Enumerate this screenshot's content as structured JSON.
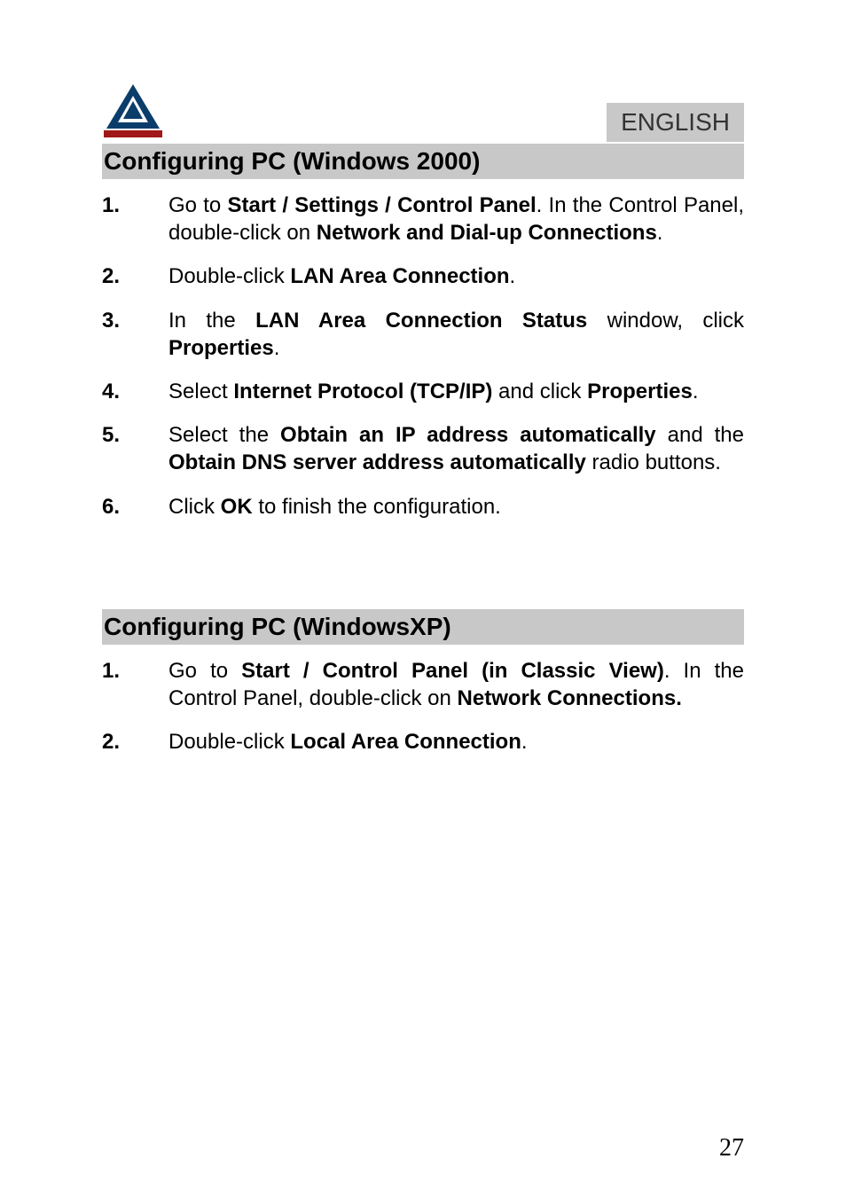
{
  "language_badge": "ENGLISH",
  "page_number": "27",
  "colors": {
    "heading_bg": "#c8c8c8",
    "badge_bg": "#c8c8c8",
    "text": "#000000",
    "page_bg": "#ffffff",
    "logo_triangle": "#0b3d6b",
    "logo_bar": "#a01818"
  },
  "fonts": {
    "body_family": "Arial",
    "body_size": 24,
    "heading_size": 28,
    "page_number_family": "Times New Roman",
    "page_number_size": 28
  },
  "sections": [
    {
      "heading": "Configuring  PC (Windows 2000)",
      "steps": [
        {
          "number": "1.",
          "parts": [
            {
              "text": "Go to ",
              "bold": false
            },
            {
              "text": "Start / Settings / Control Panel",
              "bold": true
            },
            {
              "text": ". In the Control Panel, double-click on ",
              "bold": false
            },
            {
              "text": "Network and Dial-up Connections",
              "bold": true
            },
            {
              "text": ".",
              "bold": false
            }
          ]
        },
        {
          "number": "2.",
          "parts": [
            {
              "text": "Double-click ",
              "bold": false
            },
            {
              "text": "LAN Area Connection",
              "bold": true
            },
            {
              "text": ".",
              "bold": false
            }
          ]
        },
        {
          "number": "3.",
          "parts": [
            {
              "text": "In the ",
              "bold": false
            },
            {
              "text": "LAN Area Connection Status",
              "bold": true
            },
            {
              "text": " window, click ",
              "bold": false
            },
            {
              "text": "Properties",
              "bold": true
            },
            {
              "text": ".",
              "bold": false
            }
          ]
        },
        {
          "number": "4.",
          "parts": [
            {
              "text": "Select ",
              "bold": false
            },
            {
              "text": "Internet Protocol (TCP/IP)",
              "bold": true
            },
            {
              "text": " and click ",
              "bold": false
            },
            {
              "text": "Properties",
              "bold": true
            },
            {
              "text": ".",
              "bold": false
            }
          ]
        },
        {
          "number": "5.",
          "parts": [
            {
              "text": "Select the ",
              "bold": false
            },
            {
              "text": "Obtain an IP address automatically",
              "bold": true
            },
            {
              "text": " and the ",
              "bold": false
            },
            {
              "text": "Obtain DNS server address automatically",
              "bold": true
            },
            {
              "text": " radio buttons.",
              "bold": false
            }
          ]
        },
        {
          "number": "6.",
          "parts": [
            {
              "text": "Click ",
              "bold": false
            },
            {
              "text": "OK",
              "bold": true
            },
            {
              "text": " to finish the configuration.",
              "bold": false
            }
          ]
        }
      ]
    },
    {
      "heading": "Configuring   PC (WindowsXP)",
      "steps": [
        {
          "number": "1.",
          "parts": [
            {
              "text": "Go to ",
              "bold": false
            },
            {
              "text": "Start / Control Panel (in Classic View)",
              "bold": true
            },
            {
              "text": ". In the Control Panel, double-click on ",
              "bold": false
            },
            {
              "text": "Network Connections.",
              "bold": true
            }
          ]
        },
        {
          "number": "2.",
          "parts": [
            {
              "text": "Double-click ",
              "bold": false
            },
            {
              "text": "Local Area Connection",
              "bold": true
            },
            {
              "text": ".",
              "bold": false
            }
          ]
        }
      ]
    }
  ]
}
